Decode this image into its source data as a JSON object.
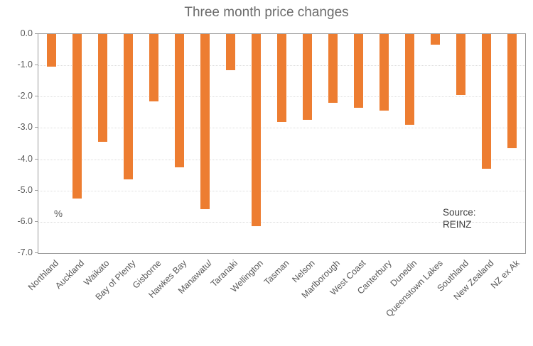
{
  "chart_data": {
    "type": "bar",
    "title": "Three month price changes",
    "categories": [
      "Northland",
      "Auckland",
      "Waikato",
      "Bay of Plenty",
      "Gisborne",
      "Hawkes Bay",
      "Manawatu/",
      "Taranaki",
      "Wellington",
      "Tasman",
      "Nelson",
      "Marlborough",
      "West Coast",
      "Canterbury",
      "Dunedin",
      "Queenstown Lakes",
      "Southland",
      "New Zealand",
      "NZ ex Ak"
    ],
    "values": [
      -1.05,
      -5.25,
      -3.45,
      -4.65,
      -2.15,
      -4.25,
      -5.6,
      -1.15,
      -6.15,
      -2.8,
      -2.75,
      -2.2,
      -2.35,
      -2.45,
      -2.9,
      -0.35,
      -1.95,
      -4.3,
      -3.65
    ],
    "ytick_labels": [
      "0.0",
      "-1.0",
      "-2.0",
      "-3.0",
      "-4.0",
      "-5.0",
      "-6.0",
      "-7.0"
    ],
    "ylim": [
      -7.0,
      0.0
    ],
    "unit_label": "%",
    "source_lines": [
      "Source:",
      "REINZ"
    ],
    "bar_color": "#ED7D31",
    "title_color": "#6b6b6b",
    "axis_text_color": "#595959",
    "grid": true,
    "legend": "none"
  }
}
